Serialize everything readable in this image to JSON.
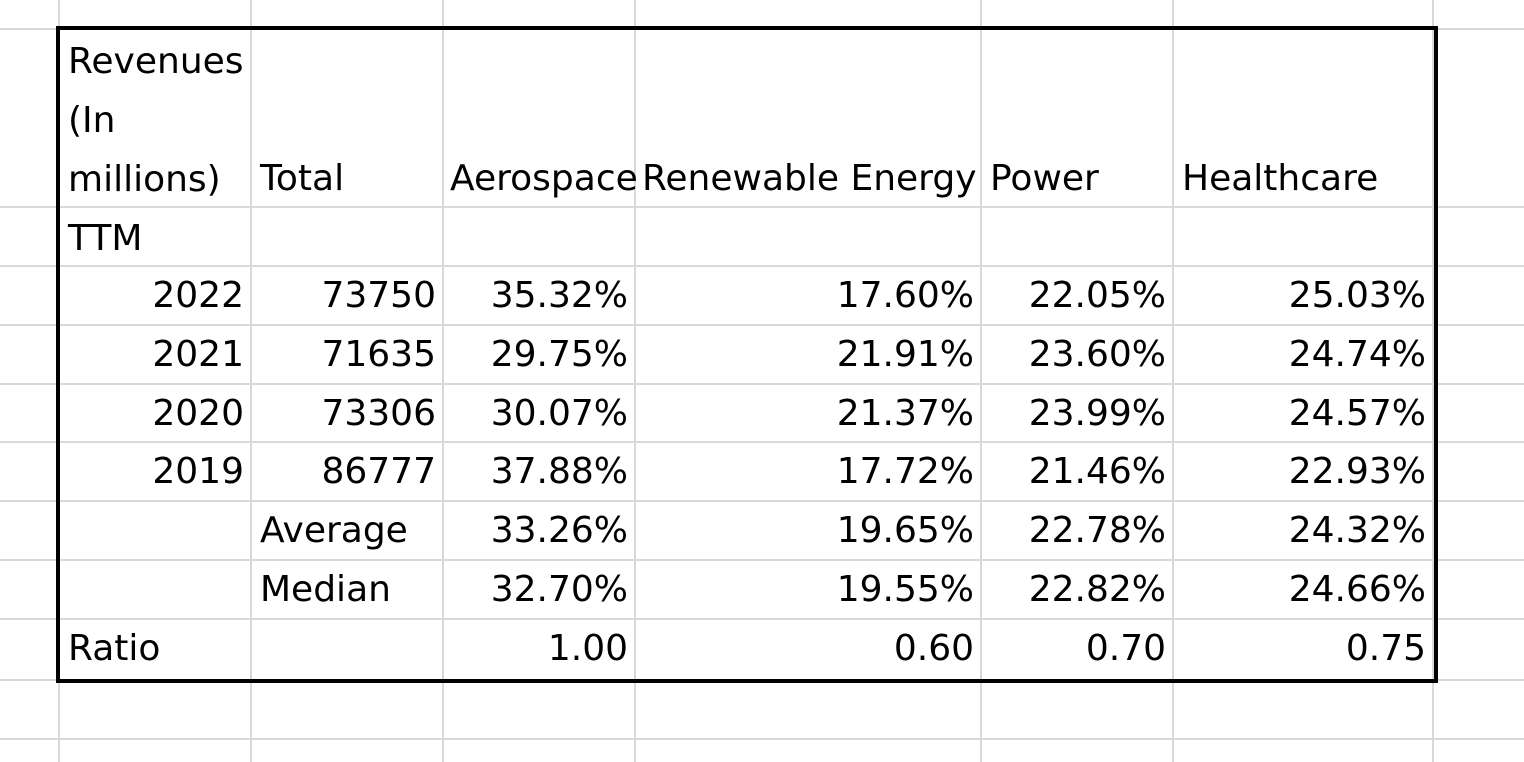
{
  "sheet": {
    "header": {
      "label_lines": [
        "Revenues",
        "(In",
        "millions)",
        "TTM"
      ],
      "total": "Total",
      "columns": [
        "Aerospace",
        "Renewable Energy",
        "Power",
        "Healthcare"
      ]
    },
    "rows": [
      {
        "year": "2022",
        "total": "73750",
        "values": [
          "35.32%",
          "17.60%",
          "22.05%",
          "25.03%"
        ]
      },
      {
        "year": "2021",
        "total": "71635",
        "values": [
          "29.75%",
          "21.91%",
          "23.60%",
          "24.74%"
        ]
      },
      {
        "year": "2020",
        "total": "73306",
        "values": [
          "30.07%",
          "21.37%",
          "23.99%",
          "24.57%"
        ]
      },
      {
        "year": "2019",
        "total": "86777",
        "values": [
          "37.88%",
          "17.72%",
          "21.46%",
          "22.93%"
        ]
      }
    ],
    "average": {
      "label": "Average",
      "values": [
        "33.26%",
        "19.65%",
        "22.78%",
        "24.32%"
      ]
    },
    "median": {
      "label": "Median",
      "values": [
        "32.70%",
        "19.55%",
        "22.82%",
        "24.66%"
      ]
    },
    "ratio": {
      "label": "Ratio",
      "values": [
        "1.00",
        "0.60",
        "0.70",
        "0.75"
      ]
    }
  },
  "colors": {
    "gridline": "#d9d9d9",
    "border": "#000000",
    "text": "#000000",
    "background": "#ffffff"
  }
}
